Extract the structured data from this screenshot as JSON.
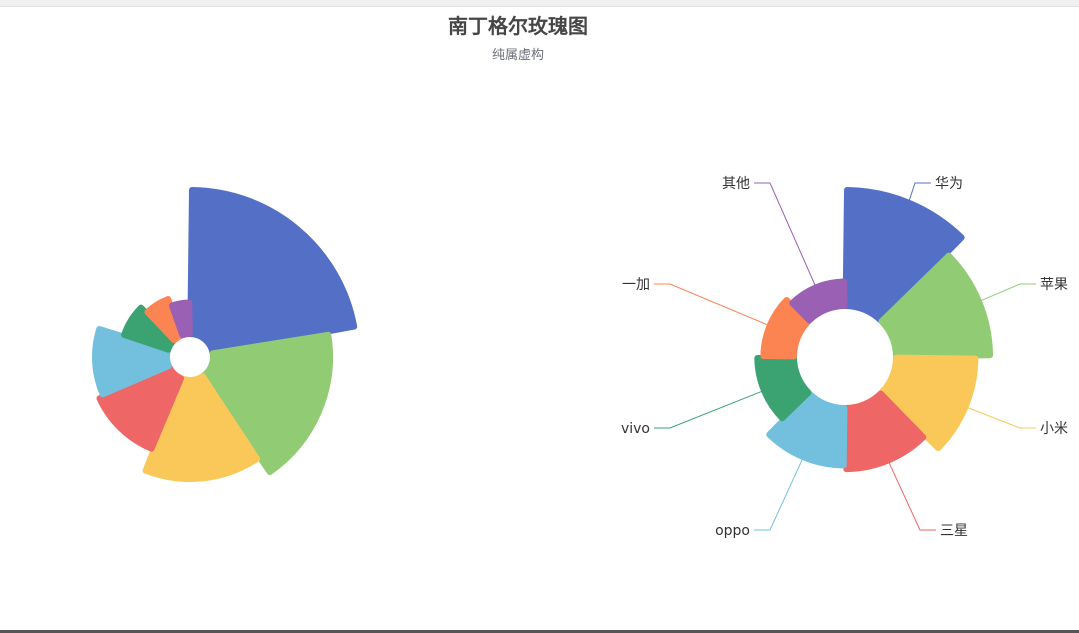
{
  "chart_data": [
    {
      "type": "pie",
      "rose_type": "radius",
      "title": "南丁格尔玫瑰图",
      "subtitle": "纯属虚构",
      "categories": [
        "华为",
        "苹果",
        "小米",
        "三星",
        "oppo",
        "vivo",
        "一加",
        "其他"
      ],
      "values": [
        100,
        82,
        70,
        55,
        52,
        35,
        30,
        25
      ],
      "colors": [
        "#5470c6",
        "#91cc75",
        "#fac858",
        "#ee6666",
        "#73c0de",
        "#3ba272",
        "#fc8452",
        "#9a60b4"
      ],
      "labels_shown": false
    },
    {
      "type": "pie",
      "rose_type": "area",
      "categories": [
        "华为",
        "苹果",
        "小米",
        "三星",
        "oppo",
        "vivo",
        "一加",
        "其他"
      ],
      "values": [
        100,
        82,
        70,
        55,
        52,
        35,
        30,
        25
      ],
      "colors": [
        "#5470c6",
        "#91cc75",
        "#fac858",
        "#ee6666",
        "#73c0de",
        "#3ba272",
        "#fc8452",
        "#9a60b4"
      ],
      "labels_shown": true
    }
  ]
}
